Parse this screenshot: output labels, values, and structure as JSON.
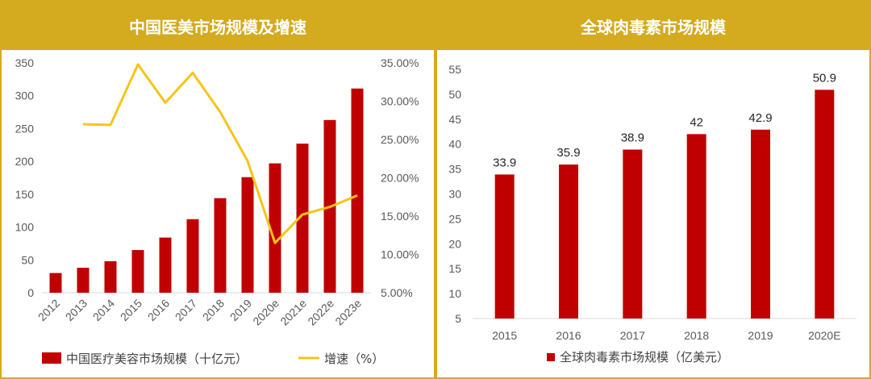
{
  "charts": {
    "left": {
      "title": "中国医美市场规模及增速",
      "chart_data": {
        "type": "bar",
        "title": "中国医美市场规模及增速",
        "categories": [
          "2012",
          "2013",
          "2014",
          "2015",
          "2016",
          "2017",
          "2018",
          "2019",
          "2020e",
          "2021e",
          "2022e",
          "2023e"
        ],
        "y_ticks": [
          "0",
          "50",
          "100",
          "150",
          "200",
          "250",
          "300",
          "350"
        ],
        "y2_ticks": [
          "5.00%",
          "10.00%",
          "15.00%",
          "20.00%",
          "25.00%",
          "30.00%",
          "35.00%"
        ],
        "ylim": [
          0,
          350
        ],
        "y2lim": [
          5,
          35
        ],
        "series": [
          {
            "name": "中国医疗美容市场规模（十亿元）",
            "type": "bar",
            "axis": "left",
            "color": "#c00000",
            "values": [
              30,
              38,
              48,
              65,
              84,
              112,
              144,
              176,
              197,
              227,
              263,
              311
            ]
          },
          {
            "name": "增速（%）",
            "type": "line",
            "axis": "right",
            "color": "#f5c518",
            "values": [
              null,
              27.0,
              26.9,
              34.8,
              29.8,
              33.7,
              28.6,
              22.2,
              11.5,
              15.2,
              16.2,
              17.7
            ]
          }
        ],
        "legend_position": "bottom"
      }
    },
    "right": {
      "title": "全球肉毒素市场规模",
      "chart_data": {
        "type": "bar",
        "title": "全球肉毒素市场规模",
        "categories": [
          "2015",
          "2016",
          "2017",
          "2018",
          "2019",
          "2020E"
        ],
        "y_ticks": [
          "5",
          "10",
          "15",
          "20",
          "25",
          "30",
          "35",
          "40",
          "45",
          "50",
          "55"
        ],
        "ylim": [
          5,
          55
        ],
        "series": [
          {
            "name": "全球肉毒素市场规模（亿美元）",
            "type": "bar",
            "color": "#c00000",
            "values": [
              33.9,
              35.9,
              38.9,
              42,
              42.9,
              50.9
            ],
            "labels": [
              "33.9",
              "35.9",
              "38.9",
              "42",
              "42.9",
              "50.9"
            ]
          }
        ],
        "legend_position": "bottom"
      }
    }
  }
}
